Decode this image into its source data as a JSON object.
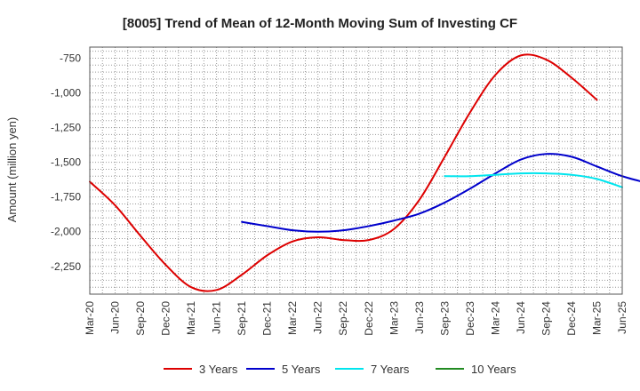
{
  "chart_data": {
    "type": "line",
    "title": "[8005]  Trend of Mean of 12-Month Moving Sum of Investing CF",
    "xlabel": "",
    "ylabel": "Amount (million yen)",
    "ylim": [
      -2450,
      -670
    ],
    "yticks": [
      -750,
      -1000,
      -1250,
      -1500,
      -1750,
      -2000,
      -2250
    ],
    "ytick_labels": [
      "-750",
      "-1,000",
      "-1,250",
      "-1,500",
      "-1,750",
      "-2,000",
      "-2,250"
    ],
    "x_categories": [
      "Mar-20",
      "Jun-20",
      "Sep-20",
      "Dec-20",
      "Mar-21",
      "Jun-21",
      "Sep-21",
      "Dec-21",
      "Mar-22",
      "Jun-22",
      "Sep-22",
      "Dec-22",
      "Mar-23",
      "Jun-23",
      "Sep-23",
      "Dec-23",
      "Mar-24",
      "Jun-24",
      "Sep-24",
      "Dec-24",
      "Mar-25",
      "Jun-25"
    ],
    "grid": true,
    "legend_position": "bottom",
    "series": [
      {
        "name": "3 Years",
        "color": "#dd0000",
        "start_index": 0,
        "values": [
          -1640,
          -1810,
          -2030,
          -2240,
          -2400,
          -2420,
          -2310,
          -2170,
          -2070,
          -2040,
          -2060,
          -2060,
          -1980,
          -1770,
          -1460,
          -1140,
          -870,
          -730,
          -760,
          -890,
          -1050
        ]
      },
      {
        "name": "5 Years",
        "color": "#0000cc",
        "start_index": 6,
        "values": [
          -1930,
          -1960,
          -1990,
          -2000,
          -1990,
          -1960,
          -1920,
          -1870,
          -1790,
          -1690,
          -1580,
          -1480,
          -1440,
          -1460,
          -1530,
          -1600,
          -1650
        ]
      },
      {
        "name": "7 Years",
        "color": "#00e5ee",
        "start_index": 14,
        "values": [
          -1600,
          -1600,
          -1590,
          -1580,
          -1580,
          -1590,
          -1620,
          -1680
        ]
      },
      {
        "name": "10 Years",
        "color": "#228b22",
        "start_index": 21,
        "values": []
      }
    ]
  }
}
